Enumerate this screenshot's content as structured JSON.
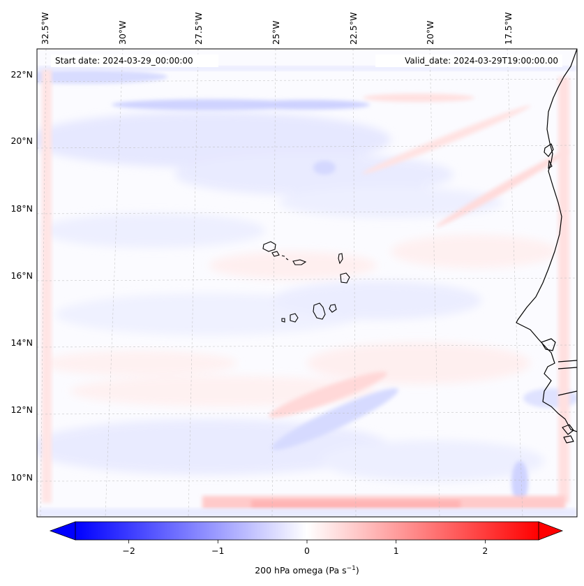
{
  "map": {
    "start_label": "Start date: 2024-03-29_00:00:00",
    "valid_label": "Valid_date: 2024-03-29T19:00:00.00",
    "lon_labels": [
      "32.5°W",
      "30°W",
      "27.5°W",
      "25°W",
      "22.5°W",
      "20°W",
      "17.5°W"
    ],
    "lat_labels": [
      "22°N",
      "20°N",
      "18°N",
      "16°N",
      "14°N",
      "12°N",
      "10°N"
    ],
    "colors": {
      "negative": "#0000ff",
      "zero": "#ffffff",
      "positive": "#ff0000",
      "coastline": "#000000",
      "gridline": "#bbbbbb"
    }
  },
  "colorbar": {
    "label_prefix": "200 hPa omega (Pa s",
    "label_sup": "−1",
    "label_suffix": ")",
    "ticks": [
      "−2",
      "−1",
      "0",
      "1",
      "2"
    ],
    "tick_values": [
      -2,
      -1,
      0,
      1,
      2
    ],
    "vmin": -2.6,
    "vmax": 2.6,
    "extend": "both"
  }
}
